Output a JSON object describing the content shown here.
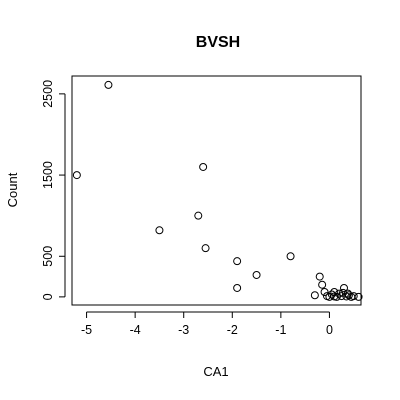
{
  "chart_data": {
    "type": "scatter",
    "title": "BVSH",
    "xlabel": "CA1",
    "ylabel": "Count",
    "xlim": [
      -5.3,
      0.65
    ],
    "ylim": [
      -100,
      2720
    ],
    "xticks": [
      -5,
      -4,
      -3,
      -2,
      -1,
      0
    ],
    "yticks": [
      0,
      500,
      1500,
      2500
    ],
    "grid": false,
    "points": [
      {
        "x": -4.55,
        "y": 2610
      },
      {
        "x": -5.2,
        "y": 1500
      },
      {
        "x": -2.6,
        "y": 1600
      },
      {
        "x": -2.7,
        "y": 1000
      },
      {
        "x": -3.5,
        "y": 820
      },
      {
        "x": -2.55,
        "y": 600
      },
      {
        "x": -1.9,
        "y": 440
      },
      {
        "x": -0.8,
        "y": 500
      },
      {
        "x": -1.5,
        "y": 270
      },
      {
        "x": -1.9,
        "y": 110
      },
      {
        "x": -0.3,
        "y": 20
      },
      {
        "x": -0.2,
        "y": 250
      },
      {
        "x": -0.15,
        "y": 150
      },
      {
        "x": -0.1,
        "y": 60
      },
      {
        "x": -0.05,
        "y": 10
      },
      {
        "x": 0.0,
        "y": 0
      },
      {
        "x": 0.05,
        "y": 30
      },
      {
        "x": 0.1,
        "y": 5
      },
      {
        "x": 0.15,
        "y": 0
      },
      {
        "x": 0.2,
        "y": 40
      },
      {
        "x": 0.25,
        "y": 10
      },
      {
        "x": 0.3,
        "y": 110
      },
      {
        "x": 0.35,
        "y": 5
      },
      {
        "x": 0.4,
        "y": 20
      },
      {
        "x": 0.45,
        "y": 0
      },
      {
        "x": 0.5,
        "y": 10
      },
      {
        "x": 0.6,
        "y": 0
      },
      {
        "x": 0.1,
        "y": 60
      },
      {
        "x": 0.28,
        "y": 50
      },
      {
        "x": 0.38,
        "y": 40
      }
    ]
  }
}
